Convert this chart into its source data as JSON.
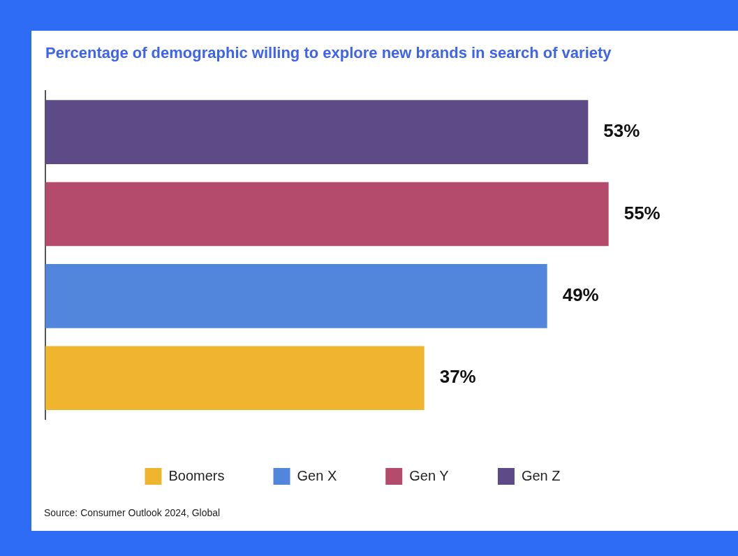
{
  "chart_data": {
    "type": "bar",
    "orientation": "horizontal",
    "stacked": true,
    "title": "Percentage of demographic willing to explore new brands in search of variety",
    "categories": [
      null,
      null,
      null,
      null
    ],
    "series": [
      {
        "name": "Boomers",
        "color": "#f0b52e",
        "values": [
          null,
          null,
          null,
          37
        ],
        "value_labels": [
          null,
          null,
          null,
          "37%"
        ]
      },
      {
        "name": "Gen X",
        "color": "#5286dc",
        "values": [
          null,
          null,
          49,
          null
        ],
        "value_labels": [
          null,
          null,
          "49%",
          null
        ]
      },
      {
        "name": "Gen Y",
        "color": "#b44b6c",
        "values": [
          null,
          55,
          null,
          null
        ],
        "value_labels": [
          null,
          "55%",
          null,
          null
        ]
      },
      {
        "name": "Gen Z",
        "color": "#5d4b87",
        "values": [
          53,
          null,
          null,
          null
        ],
        "value_labels": [
          "53%",
          null,
          null,
          null
        ]
      }
    ],
    "tick_labels": false,
    "legend": "bottom",
    "annotations": [
      "Source: Consumer Outlook 2024, Global"
    ]
  }
}
